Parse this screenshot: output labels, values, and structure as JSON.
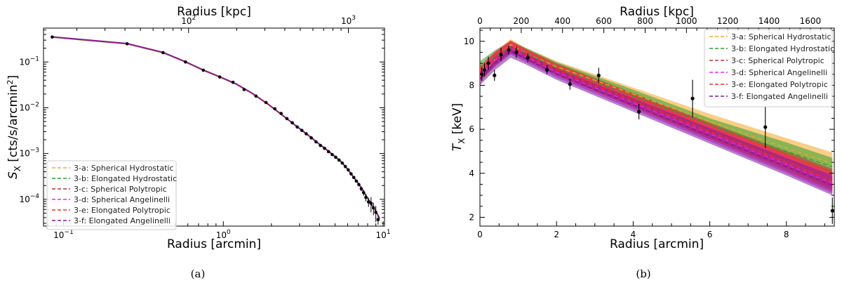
{
  "chart_data": [
    {
      "type": "line",
      "panel_label": "(a)",
      "xlabel": "Radius [arcmin]",
      "ylabel": "S_X [cts/s/arcmin^2]",
      "ylabel_parts": {
        "s": "S",
        "sub": "X",
        "unit": " [cts/s/arcmin",
        "sup": "2",
        "close": "]"
      },
      "top_xlabel": "Radius [kpc]",
      "xscale": "log",
      "yscale": "log",
      "xlim": [
        0.075,
        10.2
      ],
      "ylim": [
        2.6e-05,
        0.55
      ],
      "xticks": [
        {
          "v": 0.1,
          "b": "10",
          "e": "−1"
        },
        {
          "v": 1,
          "b": "10",
          "e": "0"
        },
        {
          "v": 10,
          "b": "10",
          "e": "1"
        }
      ],
      "yticks": [
        {
          "v": 0.0001,
          "b": "10",
          "e": "−4"
        },
        {
          "v": 0.001,
          "b": "10",
          "e": "−3"
        },
        {
          "v": 0.01,
          "b": "10",
          "e": "−2"
        },
        {
          "v": 0.1,
          "b": "10",
          "e": "−1"
        }
      ],
      "top_ticks": [
        {
          "v": 100,
          "b": "10",
          "e": "2"
        },
        {
          "v": 1000,
          "b": "10",
          "e": "3"
        }
      ],
      "top_scale_kpc_per_arcmin": 165,
      "legend_position": "lower-left",
      "series": [
        {
          "name": "3-a: Spherical Hydrostatic",
          "color": "#f5a623"
        },
        {
          "name": "3-b: Elongated Hydrostatic",
          "color": "#2e9e2e"
        },
        {
          "name": "3-c: Spherical Polytropic",
          "color": "#b5323c"
        },
        {
          "name": "3-d: Spherical Angelinelli",
          "color": "#ee22ee"
        },
        {
          "name": "3-e: Elongated Polytropic",
          "color": "#ff2a2a"
        },
        {
          "name": "3-f: Elongated Angelinelli",
          "color": "#7a1a9a"
        }
      ],
      "model_curve": {
        "x": [
          0.085,
          0.25,
          0.42,
          0.58,
          0.75,
          0.95,
          1.2,
          1.5,
          1.9,
          2.3,
          2.8,
          3.3,
          3.9,
          4.5,
          5.0,
          5.5,
          6.0,
          6.5,
          7.0,
          7.5,
          8.0,
          8.5,
          9.0,
          9.5
        ],
        "y": [
          0.35,
          0.25,
          0.16,
          0.1,
          0.066,
          0.047,
          0.033,
          0.021,
          0.012,
          0.0072,
          0.0042,
          0.0027,
          0.0017,
          0.00115,
          0.00085,
          0.00064,
          0.00045,
          0.00031,
          0.00022,
          0.00015,
          0.000105,
          7.5e-05,
          5.5e-05,
          3.8e-05
        ]
      },
      "observed": {
        "x": [
          0.085,
          0.25,
          0.42,
          0.58,
          0.75,
          0.95,
          1.15,
          1.35,
          1.6,
          1.85,
          2.1,
          2.3,
          2.5,
          2.7,
          2.9,
          3.1,
          3.3,
          3.55,
          3.8,
          4.05,
          4.3,
          4.55,
          4.8,
          5.05,
          5.3,
          5.55,
          5.8,
          6.05,
          6.3,
          6.55,
          6.8,
          7.05,
          7.3,
          7.55,
          7.8,
          8.1,
          8.4,
          8.7,
          9.0,
          9.3
        ],
        "y": [
          0.35,
          0.25,
          0.16,
          0.1,
          0.066,
          0.047,
          0.036,
          0.025,
          0.018,
          0.013,
          0.0095,
          0.0075,
          0.0058,
          0.0047,
          0.0038,
          0.0032,
          0.0027,
          0.0022,
          0.0018,
          0.0015,
          0.0013,
          0.0011,
          0.00095,
          0.00083,
          0.00072,
          0.00062,
          0.00052,
          0.00044,
          0.00036,
          0.0003,
          0.00025,
          0.00021,
          0.00017,
          0.00014,
          0.00011,
          8.8e-05,
          8.2e-05,
          6.5e-05,
          5.2e-05,
          3.6e-05
        ],
        "err": [
          0,
          0,
          0,
          0,
          0,
          0,
          0,
          0,
          0,
          0,
          0,
          0,
          0,
          0,
          0,
          0,
          0,
          0,
          0,
          0,
          0,
          0,
          0,
          0,
          0,
          0,
          0,
          0,
          0,
          0,
          0,
          0,
          2e-05,
          2e-05,
          2e-05,
          2e-05,
          3e-05,
          2e-05,
          2e-05,
          8e-06
        ]
      }
    },
    {
      "type": "line",
      "panel_label": "(b)",
      "xlabel": "Radius [arcmin]",
      "ylabel": "T_X [keV]",
      "ylabel_parts": {
        "s": "T",
        "sub": "X",
        "unit": " [keV]"
      },
      "top_xlabel": "Radius [kpc]",
      "xscale": "linear",
      "yscale": "linear",
      "xlim": [
        0,
        9.25
      ],
      "ylim": [
        1.6,
        10.6
      ],
      "xticks": [
        0,
        2,
        4,
        6,
        8
      ],
      "yticks": [
        2,
        4,
        6,
        8,
        10
      ],
      "top_ticks": [
        0,
        200,
        400,
        600,
        800,
        1000,
        1200,
        1400,
        1600
      ],
      "top_scale_kpc_per_arcmin": 185.5,
      "legend_position": "top-right",
      "series": [
        {
          "name": "3-a: Spherical Hydrostatic",
          "color": "#f5a623",
          "x": [
            0,
            0.4,
            0.8,
            1.2,
            2,
            4,
            6,
            8,
            9.2
          ],
          "y": [
            8.4,
            9.2,
            9.85,
            9.45,
            8.85,
            7.6,
            6.35,
            5.15,
            4.45
          ],
          "band_lo": [
            8.1,
            8.9,
            9.55,
            9.2,
            8.6,
            7.3,
            6.0,
            4.75,
            4.0
          ],
          "band_hi": [
            8.7,
            9.5,
            10.1,
            9.7,
            9.1,
            7.9,
            6.7,
            5.6,
            4.95
          ]
        },
        {
          "name": "3-b: Elongated Hydrostatic",
          "color": "#2e9e2e",
          "x": [
            0,
            0.4,
            0.8,
            1.2,
            2,
            4,
            6,
            8,
            9.2
          ],
          "y": [
            8.8,
            9.3,
            9.8,
            9.45,
            8.8,
            7.5,
            6.2,
            5.0,
            4.3
          ],
          "band_lo": [
            8.4,
            9.0,
            9.5,
            9.2,
            8.55,
            7.2,
            5.85,
            4.6,
            3.9
          ],
          "band_hi": [
            9.1,
            9.6,
            10.0,
            9.7,
            9.05,
            7.8,
            6.5,
            5.4,
            4.7
          ]
        },
        {
          "name": "3-c: Spherical Polytropic",
          "color": "#b5323c",
          "x": [
            0,
            0.4,
            0.8,
            1.2,
            2,
            4,
            6,
            8,
            9.2
          ],
          "y": [
            8.5,
            9.2,
            9.75,
            9.4,
            8.75,
            7.35,
            5.95,
            4.6,
            3.75
          ],
          "band_lo": [
            8.2,
            8.9,
            9.45,
            9.15,
            8.5,
            7.05,
            5.6,
            4.2,
            3.3
          ],
          "band_hi": [
            8.8,
            9.5,
            10.0,
            9.65,
            9.0,
            7.65,
            6.3,
            5.0,
            4.2
          ]
        },
        {
          "name": "3-d: Spherical Angelinelli",
          "color": "#ee22ee",
          "x": [
            0,
            0.4,
            0.8,
            1.2,
            2,
            4,
            6,
            8,
            9.2
          ],
          "y": [
            8.5,
            9.15,
            9.7,
            9.3,
            8.6,
            7.2,
            5.8,
            4.4,
            3.55
          ],
          "band_lo": [
            8.2,
            8.85,
            9.4,
            9.05,
            8.35,
            6.9,
            5.45,
            4.0,
            3.1
          ],
          "band_hi": [
            8.8,
            9.45,
            9.95,
            9.55,
            8.85,
            7.5,
            6.15,
            4.8,
            4.0
          ]
        },
        {
          "name": "3-e: Elongated Polytropic",
          "color": "#ff2a2a",
          "x": [
            0,
            0.4,
            0.8,
            1.2,
            2,
            4,
            6,
            8,
            9.2
          ],
          "y": [
            8.6,
            9.25,
            9.8,
            9.4,
            8.7,
            7.3,
            5.9,
            4.5,
            3.65
          ],
          "band_lo": [
            8.3,
            8.95,
            9.5,
            9.15,
            8.45,
            7.0,
            5.55,
            4.1,
            3.2
          ],
          "band_hi": [
            8.9,
            9.55,
            10.05,
            9.65,
            8.95,
            7.6,
            6.25,
            4.9,
            4.1
          ]
        },
        {
          "name": "3-f: Elongated Angelinelli",
          "color": "#7a1a9a",
          "x": [
            0,
            0.4,
            0.8,
            1.2,
            2,
            4,
            6,
            8,
            9.2
          ],
          "y": [
            8.3,
            9.0,
            9.55,
            9.2,
            8.5,
            7.1,
            5.7,
            4.3,
            3.45
          ],
          "band_lo": [
            8.0,
            8.7,
            9.25,
            8.95,
            8.25,
            6.8,
            5.35,
            3.9,
            3.0
          ],
          "band_hi": [
            8.6,
            9.3,
            9.8,
            9.45,
            8.75,
            7.4,
            6.05,
            4.7,
            3.9
          ]
        }
      ],
      "observed": {
        "x": [
          0.05,
          0.12,
          0.22,
          0.38,
          0.55,
          0.75,
          0.95,
          1.25,
          1.75,
          2.35,
          3.1,
          4.15,
          5.55,
          7.45,
          9.2
        ],
        "y": [
          8.5,
          8.7,
          9.0,
          8.45,
          9.4,
          9.6,
          9.5,
          9.25,
          8.7,
          8.05,
          8.45,
          6.8,
          7.4,
          6.1,
          2.3
        ],
        "err": [
          0.3,
          0.3,
          0.3,
          0.25,
          0.3,
          0.2,
          0.25,
          0.2,
          0.2,
          0.25,
          0.35,
          0.35,
          0.85,
          0.95,
          0.6
        ]
      }
    }
  ]
}
